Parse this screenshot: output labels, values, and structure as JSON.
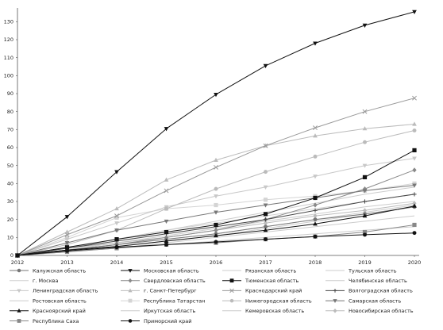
{
  "chart_data": {
    "type": "line",
    "x": [
      "2012",
      "2013",
      "2014",
      "2015",
      "2016",
      "2017",
      "2018",
      "2019",
      "2020"
    ],
    "ylim": [
      0,
      135
    ],
    "y_ticks": [
      "0",
      "10",
      "20",
      "30",
      "40",
      "50",
      "60",
      "70",
      "80",
      "90",
      "100",
      "110",
      "120",
      "130"
    ],
    "grid": false,
    "legend_placement": "bottom",
    "series": [
      {
        "name": "Калужская область",
        "color": "#777777",
        "marker": "circle",
        "values": [
          0,
          3,
          6,
          9,
          12,
          16,
          20,
          23,
          27
        ]
      },
      {
        "name": "Московская область",
        "color": "#111111",
        "marker": "triangle-down",
        "values": [
          0,
          21.5,
          46.5,
          70.5,
          89.5,
          105.5,
          118,
          128,
          135.5
        ]
      },
      {
        "name": "Рязанская область",
        "color": "#cccccc",
        "marker": "none",
        "values": [
          0,
          2,
          4,
          7,
          10,
          13,
          16,
          19,
          22
        ]
      },
      {
        "name": "Тульская область",
        "color": "#cccccc",
        "marker": "none",
        "values": [
          0,
          3,
          7,
          11,
          15,
          19,
          23,
          27,
          30
        ]
      },
      {
        "name": "г. Москва",
        "color": "#d0d0d0",
        "marker": "none",
        "values": [
          0,
          4,
          9,
          14,
          18,
          22,
          26,
          30,
          34
        ]
      },
      {
        "name": "Свердловская область",
        "color": "#888888",
        "marker": "diamond",
        "values": [
          0,
          3,
          6,
          10,
          14,
          20,
          28,
          37,
          47.5
        ]
      },
      {
        "name": "Тюменская область",
        "color": "#111111",
        "marker": "square",
        "values": [
          0,
          4.5,
          9,
          13,
          17,
          23,
          32,
          43.5,
          58.5
        ]
      },
      {
        "name": "Челябинская область",
        "color": "#cccccc",
        "marker": "none",
        "values": [
          0,
          2,
          5,
          8,
          11,
          15,
          19,
          23,
          27
        ]
      },
      {
        "name": "Ленинградская область",
        "color": "#c8c8c8",
        "marker": "triangle-down",
        "values": [
          0,
          9,
          18,
          27,
          33,
          38,
          44,
          50,
          54
        ]
      },
      {
        "name": "г. Санкт-Петербург",
        "color": "#bbbbbb",
        "marker": "triangle",
        "values": [
          0,
          13,
          26,
          42,
          53,
          61,
          66.5,
          70.5,
          73
        ]
      },
      {
        "name": "Краснодарский край",
        "color": "#999999",
        "marker": "x",
        "values": [
          0,
          11.5,
          22,
          36,
          49,
          61,
          71,
          80,
          87.5
        ]
      },
      {
        "name": "Волгоградская область",
        "color": "#444444",
        "marker": "plus",
        "values": [
          0,
          4,
          8,
          12,
          16,
          20,
          25,
          30,
          34
        ]
      },
      {
        "name": "Ростовская область",
        "color": "#cccccc",
        "marker": "none",
        "values": [
          0,
          4,
          9,
          14,
          19,
          24,
          29,
          34,
          38
        ]
      },
      {
        "name": "Республика Татарстан",
        "color": "#d4d4d4",
        "marker": "square",
        "values": [
          0,
          10,
          21,
          26,
          28,
          31,
          33,
          36,
          40
        ]
      },
      {
        "name": "Нижегородская область",
        "color": "#bbbbbb",
        "marker": "circle",
        "values": [
          0,
          6,
          14,
          26,
          37,
          46.5,
          55,
          63,
          69.5
        ]
      },
      {
        "name": "Самарская область",
        "color": "#777777",
        "marker": "triangle-down",
        "values": [
          0,
          7,
          14,
          19,
          24,
          28,
          32,
          36,
          39
        ]
      },
      {
        "name": "Красноярский край",
        "color": "#111111",
        "marker": "triangle",
        "values": [
          0,
          3,
          5,
          8,
          11,
          14,
          17.5,
          22,
          27.5
        ]
      },
      {
        "name": "Иркутская область",
        "color": "#cccccc",
        "marker": "none",
        "values": [
          0,
          3,
          6,
          9,
          12,
          16,
          20,
          24,
          28
        ]
      },
      {
        "name": "Кемеровская область",
        "color": "#cccccc",
        "marker": "none",
        "values": [
          0,
          2,
          4,
          6,
          8,
          10,
          12,
          14,
          16
        ]
      },
      {
        "name": "Новосибирская область",
        "color": "#bbbbbb",
        "marker": "diamond",
        "values": [
          0,
          4,
          7,
          10,
          14,
          18,
          22,
          25,
          29
        ]
      },
      {
        "name": "Республика Саха",
        "color": "#888888",
        "marker": "square",
        "values": [
          0,
          2,
          4,
          6,
          7,
          9,
          10.5,
          13,
          17
        ]
      },
      {
        "name": "Приморский край",
        "color": "#111111",
        "marker": "circle",
        "values": [
          0,
          2.5,
          4.5,
          6,
          7.5,
          9,
          10.5,
          11.5,
          12.5
        ]
      }
    ]
  }
}
